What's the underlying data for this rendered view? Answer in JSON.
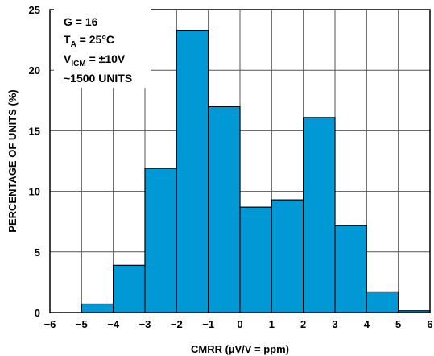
{
  "chart_data": {
    "type": "histogram",
    "xlabel": "CMRR (µV/V = ppm)",
    "ylabel": "PERCENTAGE OF UNITS (%)",
    "xlim": [
      -6,
      6
    ],
    "ylim": [
      0,
      25
    ],
    "xticks": [
      "−6",
      "−5",
      "−4",
      "−3",
      "−2",
      "−1",
      "0",
      "1",
      "2",
      "3",
      "4",
      "5",
      "6"
    ],
    "yticks": [
      "0",
      "5",
      "10",
      "15",
      "20",
      "25"
    ],
    "grid": true,
    "bar_color": "#0099d6",
    "bins": [
      {
        "x0": -5,
        "x1": -4,
        "value": 0.7
      },
      {
        "x0": -4,
        "x1": -3,
        "value": 3.9
      },
      {
        "x0": -3,
        "x1": -2,
        "value": 11.9
      },
      {
        "x0": -2,
        "x1": -1,
        "value": 23.3
      },
      {
        "x0": -1,
        "x1": 0,
        "value": 17.0
      },
      {
        "x0": 0,
        "x1": 1,
        "value": 8.7
      },
      {
        "x0": 1,
        "x1": 2,
        "value": 9.3
      },
      {
        "x0": 2,
        "x1": 3,
        "value": 16.1
      },
      {
        "x0": 3,
        "x1": 4,
        "value": 7.2
      },
      {
        "x0": 4,
        "x1": 5,
        "value": 1.7
      },
      {
        "x0": 5,
        "x1": 6,
        "value": 0.15
      }
    ],
    "annotation": {
      "line1": "G = 16",
      "line2_main": "T",
      "line2_sub": "A",
      "line2_rest": " = 25°C",
      "line3_main": "V",
      "line3_sub": "ICM",
      "line3_rest": " = ±10V",
      "line4": "~1500 UNITS"
    }
  }
}
